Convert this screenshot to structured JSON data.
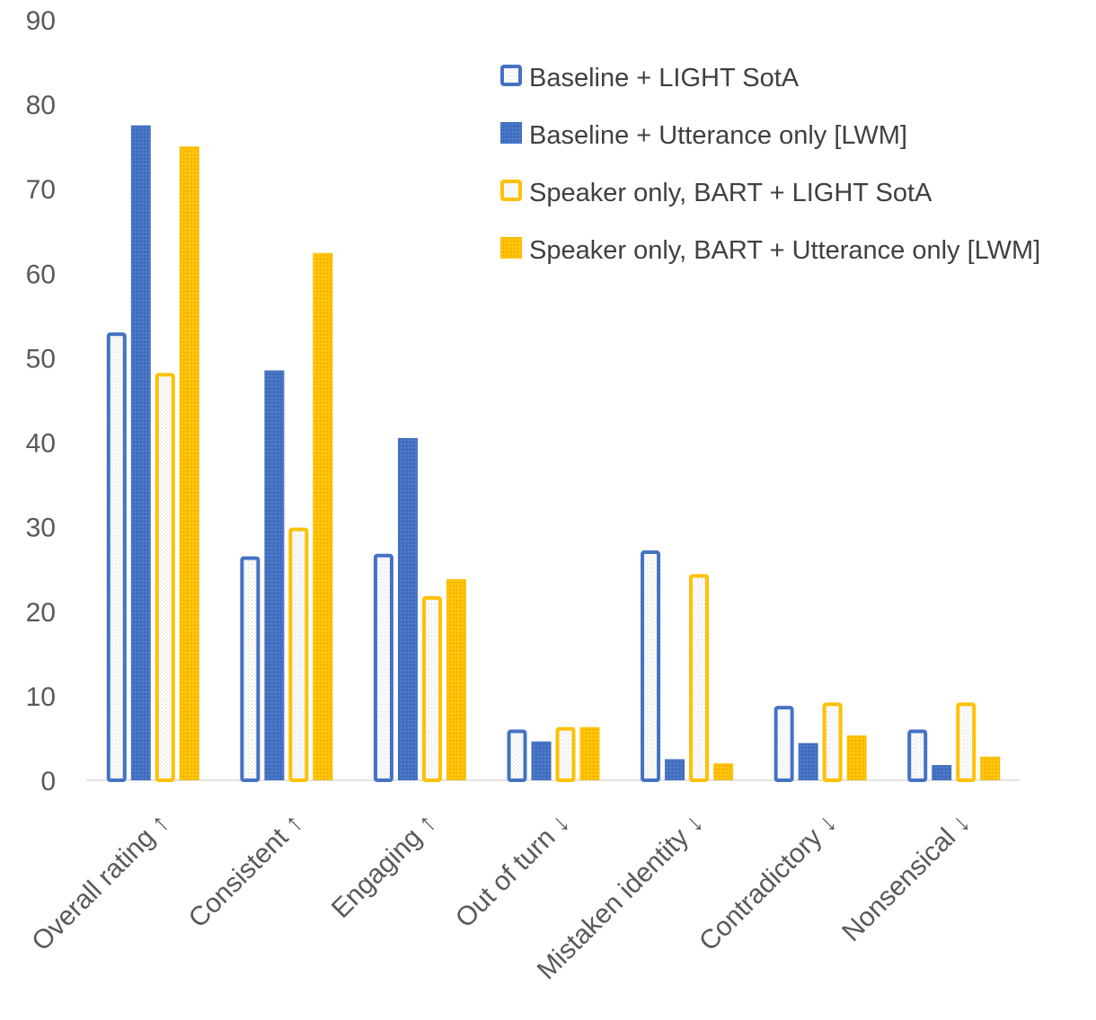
{
  "chart_data": {
    "type": "bar",
    "title": "",
    "xlabel": "",
    "ylabel": "",
    "ylim": [
      0,
      90
    ],
    "yticks": [
      0,
      10,
      20,
      30,
      40,
      50,
      60,
      70,
      80,
      90
    ],
    "grid": false,
    "legend_position": "top-right",
    "categories": [
      "Overall rating ↑",
      "Consistent ↑",
      "Engaging ↑",
      "Out of turn ↓",
      "Mistaken identity ↓",
      "Contradictory ↓",
      "Nonsensical ↓"
    ],
    "series": [
      {
        "name": "Baseline + LIGHT SotA",
        "color": "#4472C4",
        "style": "outline",
        "values": [
          53,
          26.5,
          26.8,
          6,
          27.2,
          8.8,
          6
        ]
      },
      {
        "name": "Baseline + Utterance only [LWM]",
        "color": "#4472C4",
        "style": "solid",
        "values": [
          77.5,
          48.5,
          40.5,
          4.6,
          2.5,
          4.4,
          1.8
        ]
      },
      {
        "name": "Speaker only, BART + LIGHT SotA",
        "color": "#FFC000",
        "style": "outline",
        "values": [
          48.2,
          29.9,
          21.8,
          6.3,
          24.4,
          9.2,
          9.2
        ]
      },
      {
        "name": "Speaker only, BART + Utterance only [LWM]",
        "color": "#FFC000",
        "style": "solid",
        "values": [
          75,
          62.4,
          23.8,
          6.3,
          2,
          5.3,
          2.8
        ]
      }
    ]
  }
}
